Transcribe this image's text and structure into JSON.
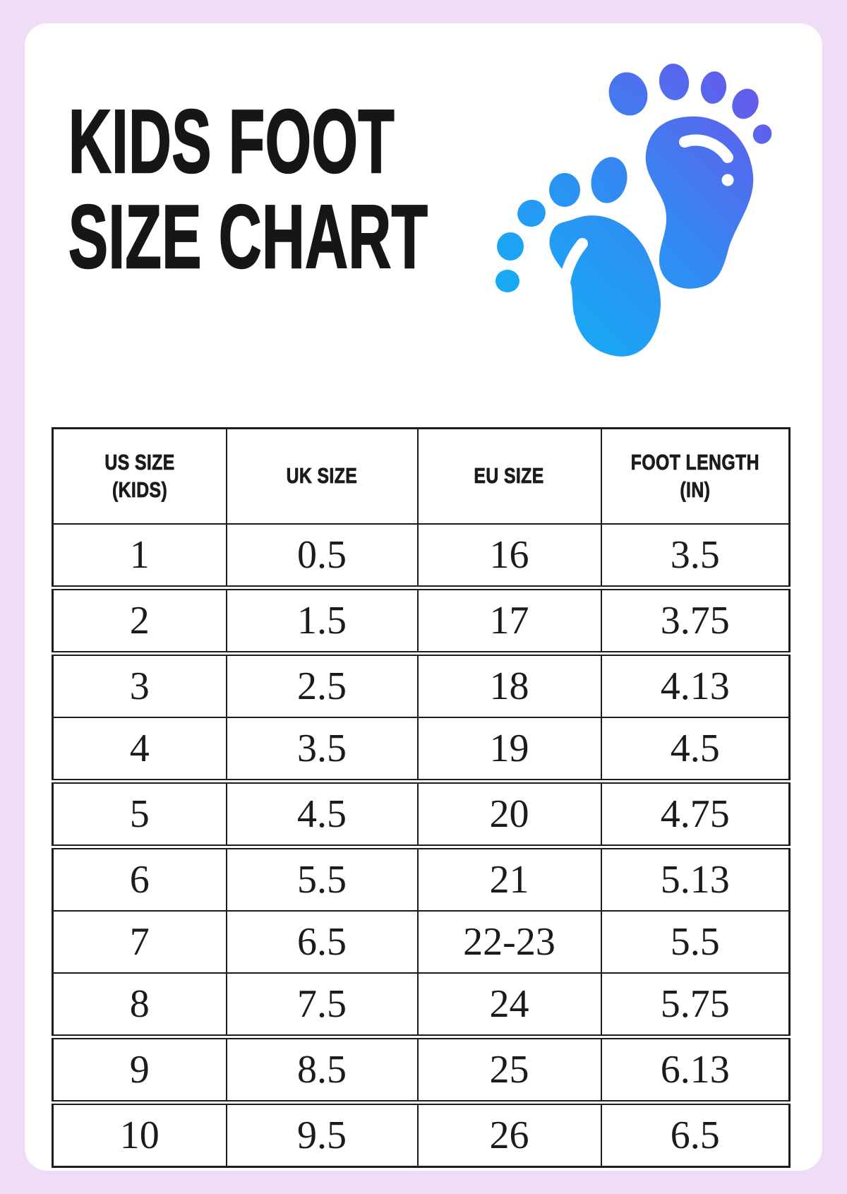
{
  "page": {
    "background_color": "#efddf8",
    "card_color": "#ffffff",
    "text_color": "#1b1b1b"
  },
  "header": {
    "title_line1": "KIDS FOOT",
    "title_line2": "SIZE CHART"
  },
  "icon": {
    "name": "baby-footprints",
    "gradient_start": "#0db6f5",
    "gradient_mid": "#2f8df3",
    "gradient_end": "#6c54e9"
  },
  "chart_data": {
    "type": "table",
    "title": "KIDS FOOT SIZE CHART",
    "columns": [
      "US SIZE\n(KIDS)",
      "UK SIZE",
      "EU SIZE",
      "FOOT LENGTH\n(IN)"
    ],
    "rows": [
      [
        "1",
        "0.5",
        "16",
        "3.5"
      ],
      [
        "2",
        "1.5",
        "17",
        "3.75"
      ],
      [
        "3",
        "2.5",
        "18",
        "4.13"
      ],
      [
        "4",
        "3.5",
        "19",
        "4.5"
      ],
      [
        "5",
        "4.5",
        "20",
        "4.75"
      ],
      [
        "6",
        "5.5",
        "21",
        "5.13"
      ],
      [
        "7",
        "6.5",
        "22-23",
        "5.5"
      ],
      [
        "8",
        "7.5",
        "24",
        "5.75"
      ],
      [
        "9",
        "8.5",
        "25",
        "6.13"
      ],
      [
        "10",
        "9.5",
        "26",
        "6.5"
      ]
    ]
  }
}
